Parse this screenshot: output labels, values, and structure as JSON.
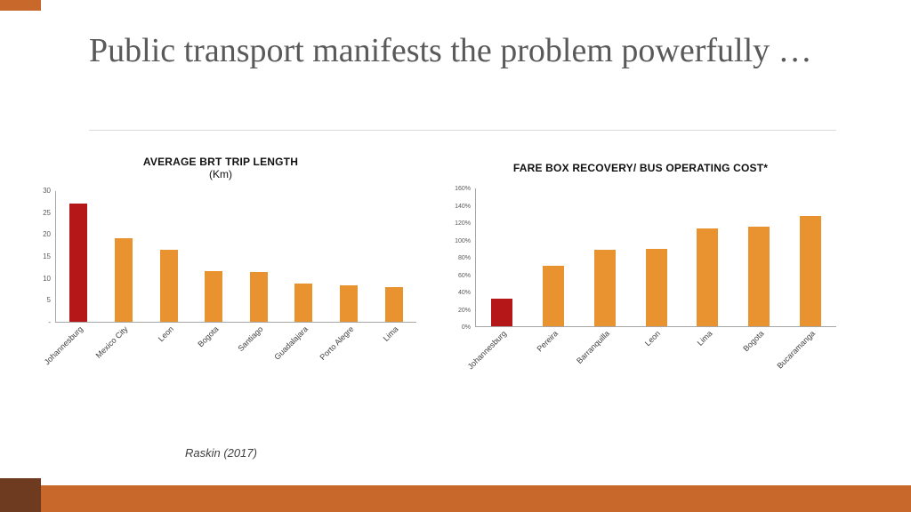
{
  "slide": {
    "title": "Public transport manifests the problem powerfully …",
    "citation": "Raskin (2017)"
  },
  "theme": {
    "accent_orange": "#C8682A",
    "accent_dark_brown": "#6E3A20",
    "bar_orange": "#E89230",
    "bar_highlight_red": "#B51718",
    "title_color": "#595959",
    "axis_line_color": "#A6A6A6"
  },
  "chart_data": [
    {
      "type": "bar",
      "title": "AVERAGE BRT TRIP LENGTH",
      "subtitle": "(Km)",
      "categories": [
        "Johannesburg",
        "Mexico City",
        "Leon",
        "Bogota",
        "Santiago",
        "Guadalajara",
        "Porto Alegre",
        "Lima"
      ],
      "values": [
        27,
        19,
        16.5,
        11.5,
        11.3,
        8.8,
        8.3,
        7.9
      ],
      "ymax": 30,
      "ylim": [
        0,
        30
      ],
      "y_ticks": [
        "-",
        "5",
        "10",
        "15",
        "20",
        "25",
        "30"
      ],
      "grid": false,
      "legend": "none",
      "bar_color": "#E89230",
      "highlight_color": "#B51718",
      "highlight_index": 0,
      "xlabel": "",
      "ylabel": ""
    },
    {
      "type": "bar",
      "title": "FARE BOX RECOVERY/ BUS OPERATING COST*",
      "subtitle": "",
      "categories": [
        "Johannesburg",
        "Pereira",
        "Barranquilla",
        "Leon",
        "Lima",
        "Bogota",
        "Bucaramanga"
      ],
      "values": [
        32,
        70,
        88,
        89,
        113,
        115,
        127
      ],
      "ymax": 160,
      "ylim": [
        0,
        160
      ],
      "y_ticks": [
        "0%",
        "20%",
        "40%",
        "60%",
        "80%",
        "100%",
        "120%",
        "140%",
        "160%"
      ],
      "grid": false,
      "legend": "none",
      "bar_color": "#E89230",
      "highlight_color": "#B51718",
      "highlight_index": 0,
      "xlabel": "",
      "ylabel": ""
    }
  ]
}
